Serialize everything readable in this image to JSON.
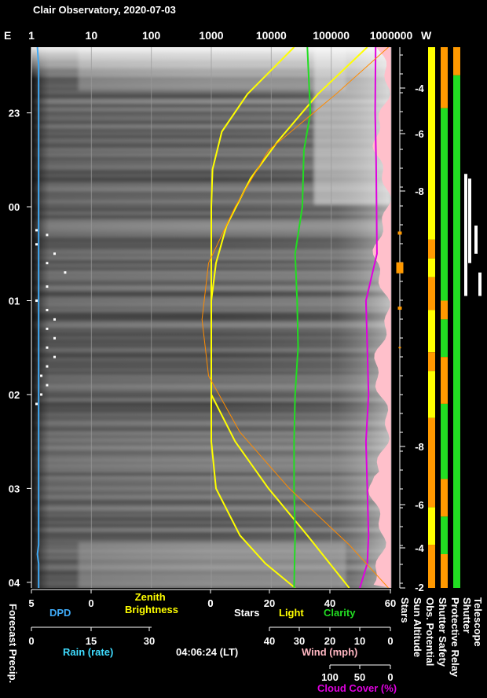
{
  "chart_data": {
    "type": "line",
    "title": "Clair Observatory, 2020-07-03",
    "timestamp": "04:06:24 (LT)",
    "top_axis": {
      "left_label": "E",
      "right_label": "W",
      "scale": "log",
      "ticks": [
        "1",
        "10",
        "100",
        "1000",
        "10000",
        "100000",
        "1000000"
      ]
    },
    "time_axis": {
      "ticks": [
        "23",
        "00",
        "01",
        "02",
        "03",
        "04"
      ],
      "tick_hours": [
        -1,
        0,
        1,
        2,
        3,
        4
      ],
      "range_hours": [
        -1.7,
        4.06
      ]
    },
    "sun_altitude_axis": {
      "ticks_upper": [
        "-4",
        "-6",
        "-8"
      ],
      "ticks_lower": [
        "-8",
        "-6",
        "-4",
        "-2"
      ]
    },
    "bottom_axes": [
      {
        "id": "forecast_precip_dpd",
        "ticks": [
          "5",
          "0"
        ]
      },
      {
        "id": "zenith_brightness",
        "ticks": [
          "0"
        ]
      },
      {
        "id": "stars_light_clarity",
        "ticks": [
          "0",
          "20",
          "40",
          "60"
        ]
      },
      {
        "id": "rain",
        "ticks": [
          "0",
          "15",
          "30"
        ]
      },
      {
        "id": "wind",
        "ticks": [
          "40",
          "30",
          "20",
          "10",
          "0"
        ]
      },
      {
        "id": "cloud_cover",
        "ticks": [
          "100",
          "50",
          "0"
        ]
      }
    ],
    "labels": {
      "dpd": "DPD",
      "zenith_brightness": "Zenith\nBrightness",
      "stars": "Stars",
      "light": "Light",
      "clarity": "Clarity",
      "rain": "Rain (rate)",
      "wind": "Wind (mph)",
      "cloud_cover": "Cloud Cover (%)",
      "forecast_precip": "Forecast Precip.",
      "stars_v": "Stars",
      "sun_altitude": "Sun Altitude",
      "obs_potential": "Obs. Potential",
      "shutter_safety": "Shutter Safety",
      "protective_relay": "Protective Relay",
      "shutter": "Shutter",
      "telescope": "Telescope"
    },
    "series": [
      {
        "name": "DPD",
        "color": "#3fa9f5",
        "x": [
          -1.7,
          -1.5,
          -1.0,
          0.0,
          1.0,
          2.0,
          3.0,
          3.6,
          3.7,
          3.8,
          4.06
        ],
        "y": [
          4.5,
          4.4,
          4.4,
          4.4,
          4.4,
          4.4,
          4.4,
          4.4,
          4.5,
          4.4,
          4.4
        ]
      },
      {
        "name": "Zenith Brightness",
        "color": "#ffff00",
        "x": [
          -1.7,
          -1.2,
          -0.8,
          -0.4,
          0.0,
          0.5,
          1.0,
          1.5,
          2.0,
          2.5,
          3.0,
          3.5,
          3.8,
          4.06
        ],
        "y": [
          24000,
          4000,
          1500,
          1050,
          1000,
          1000,
          1000,
          1000,
          1000,
          1000,
          1200,
          3000,
          8000,
          25000
        ]
      },
      {
        "name": "Stars",
        "color": "#ffffff",
        "x": [
          0.25,
          0.3,
          0.4,
          0.5,
          0.6,
          0.7,
          0.85,
          1.0,
          1.1,
          1.2,
          1.3,
          1.4,
          1.5,
          1.6,
          1.7,
          1.8,
          1.9,
          2.0,
          2.1
        ],
        "y": [
          1,
          1.5,
          1,
          2,
          1.5,
          3,
          1.5,
          1,
          1.5,
          2,
          1.5,
          2,
          1.5,
          2,
          1.5,
          1.2,
          1.5,
          1.2,
          1
        ]
      },
      {
        "name": "Light",
        "color": "#ffff00",
        "x": [
          -1.7,
          -1.2,
          -0.7,
          -0.3,
          0.2,
          0.6,
          1.0,
          1.5,
          2.0,
          2.5,
          3.0,
          3.5,
          4.06
        ],
        "y": [
          400000,
          60000,
          13000,
          4500,
          1800,
          1200,
          1000,
          1000,
          1000,
          2500,
          9000,
          40000,
          200000
        ]
      },
      {
        "name": "Clarity",
        "color": "#22dd22",
        "x": [
          -1.7,
          -1.4,
          -1.0,
          -0.6,
          0.0,
          0.5,
          1.0,
          1.5,
          2.0,
          2.5,
          3.0,
          3.5,
          4.06
        ],
        "y": [
          40000,
          42000,
          45000,
          35000,
          33000,
          25000,
          27000,
          28000,
          25000,
          24000,
          24000,
          25000,
          24000
        ]
      },
      {
        "name": "Cloud Cover",
        "color": "#e000e0",
        "x": [
          -1.7,
          -1.0,
          -0.5,
          0.0,
          0.5,
          0.8,
          1.0,
          1.5,
          2.0,
          2.5,
          3.0,
          3.5,
          3.8,
          4.06
        ],
        "y": [
          550000,
          540000,
          560000,
          570000,
          580000,
          450000,
          380000,
          400000,
          420000,
          380000,
          400000,
          420000,
          400000,
          300000
        ]
      },
      {
        "name": "Sun Altitude",
        "color": "#ff8c00",
        "x": [
          -1.7,
          -1.2,
          -0.6,
          0.0,
          0.6,
          1.2,
          1.8,
          2.4,
          3.0,
          3.6,
          4.06
        ],
        "y": [
          900000,
          120000,
          9000,
          2500,
          900,
          700,
          900,
          3000,
          20000,
          200000,
          900000
        ]
      }
    ],
    "status_columns": [
      {
        "name": "Obs. Potential",
        "segments": [
          {
            "from": -1.7,
            "to": 0.35,
            "color": "#ffff00"
          },
          {
            "from": 0.35,
            "to": 0.55,
            "color": "#ff9900"
          },
          {
            "from": 0.55,
            "to": 0.75,
            "color": "#ffff00"
          },
          {
            "from": 0.75,
            "to": 1.1,
            "color": "#ff9900"
          },
          {
            "from": 1.1,
            "to": 1.55,
            "color": "#ffff00"
          },
          {
            "from": 1.55,
            "to": 1.75,
            "color": "#ff9900"
          },
          {
            "from": 1.75,
            "to": 2.25,
            "color": "#ffff00"
          },
          {
            "from": 2.25,
            "to": 3.2,
            "color": "#ff9900"
          },
          {
            "from": 3.2,
            "to": 3.6,
            "color": "#ffff00"
          },
          {
            "from": 3.6,
            "to": 4.06,
            "color": "#ff9900"
          }
        ]
      },
      {
        "name": "Shutter Safety",
        "segments": [
          {
            "from": -1.7,
            "to": -1.05,
            "color": "#ff9900"
          },
          {
            "from": -1.05,
            "to": 1.0,
            "color": "#22dd22"
          },
          {
            "from": 1.0,
            "to": 1.2,
            "color": "#ff9900"
          },
          {
            "from": 1.2,
            "to": 1.6,
            "color": "#22dd22"
          },
          {
            "from": 1.6,
            "to": 2.1,
            "color": "#ff9900"
          },
          {
            "from": 2.1,
            "to": 2.9,
            "color": "#22dd22"
          },
          {
            "from": 2.9,
            "to": 3.3,
            "color": "#ff9900"
          },
          {
            "from": 3.3,
            "to": 3.7,
            "color": "#22dd22"
          },
          {
            "from": 3.7,
            "to": 4.06,
            "color": "#ff9900"
          }
        ]
      },
      {
        "name": "Protective Relay",
        "segments": [
          {
            "from": -1.7,
            "to": -1.4,
            "color": "#ff9900"
          },
          {
            "from": -1.4,
            "to": 4.06,
            "color": "#22dd22"
          }
        ]
      }
    ],
    "forecast_marks": [
      {
        "hour": 0.28,
        "size": "small"
      },
      {
        "hour": 0.65,
        "size": "large"
      },
      {
        "hour": 1.08,
        "size": "small"
      },
      {
        "hour": 1.5,
        "size": "tick"
      }
    ],
    "telescope_bars": [
      {
        "from": -0.35,
        "to": 0.95
      },
      {
        "from": -0.3,
        "to": 0.6
      },
      {
        "from": 0.2,
        "to": 0.5
      },
      {
        "from": 0.7,
        "to": 0.95
      }
    ]
  }
}
